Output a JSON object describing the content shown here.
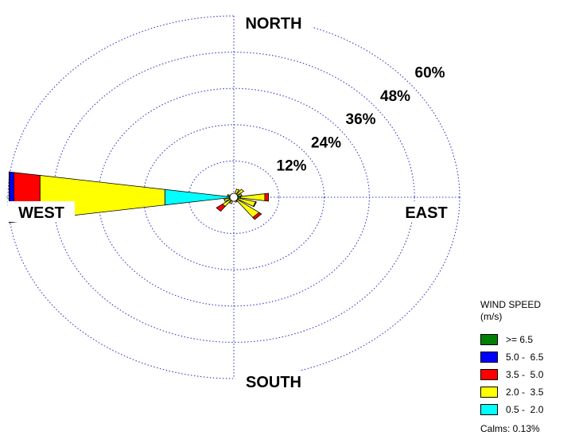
{
  "chart_data": {
    "type": "wind_rose",
    "title": "",
    "direction_labels": {
      "north": "NORTH",
      "south": "SOUTH",
      "east": "EAST",
      "west": "WEST"
    },
    "ring_values": [
      12,
      24,
      36,
      48,
      60
    ],
    "ring_labels": [
      "12%",
      "24%",
      "36%",
      "48%",
      "60%"
    ],
    "legend_title": "WIND SPEED",
    "legend_unit": "(m/s)",
    "speed_bins": [
      {
        "label": "0.5 -  2.0",
        "color": "#00ffff"
      },
      {
        "label": "2.0 -  3.5",
        "color": "#ffff00"
      },
      {
        "label": "3.5 -  5.0",
        "color": "#ff0000"
      },
      {
        "label": "5.0 -  6.5",
        "color": "#0000ff"
      },
      {
        "label": ">= 6.5",
        "color": "#008000"
      }
    ],
    "calms": "Calms: 0.13%",
    "sectors_deg": [
      0,
      22.5,
      45,
      67.5,
      90,
      112.5,
      135,
      157.5,
      180,
      202.5,
      225,
      247.5,
      270,
      292.5,
      315,
      337.5
    ],
    "frequencies": [
      [
        0,
        0,
        0,
        0,
        0
      ],
      [
        0.8,
        2.0,
        0,
        0,
        0
      ],
      [
        0.8,
        2.5,
        0,
        0,
        0
      ],
      [
        1.0,
        1.2,
        0,
        0,
        0
      ],
      [
        1.8,
        6.5,
        1.0,
        0,
        0
      ],
      [
        1.2,
        4.8,
        0.2,
        0,
        0
      ],
      [
        1.2,
        7.2,
        0.8,
        0,
        0
      ],
      [
        0.5,
        1.2,
        0,
        0,
        0
      ],
      [
        0,
        0,
        0,
        0,
        0
      ],
      [
        1.0,
        1.2,
        0,
        0,
        0
      ],
      [
        1.0,
        2.8,
        2.0,
        0,
        0
      ],
      [
        1.2,
        1.5,
        0,
        0,
        0
      ],
      [
        18.5,
        33.5,
        7.0,
        1.2,
        0.1
      ],
      [
        1.0,
        0.8,
        0,
        0,
        0
      ],
      [
        0.5,
        0.5,
        0,
        0,
        0
      ],
      [
        0.4,
        0.4,
        0,
        0,
        0
      ]
    ]
  }
}
